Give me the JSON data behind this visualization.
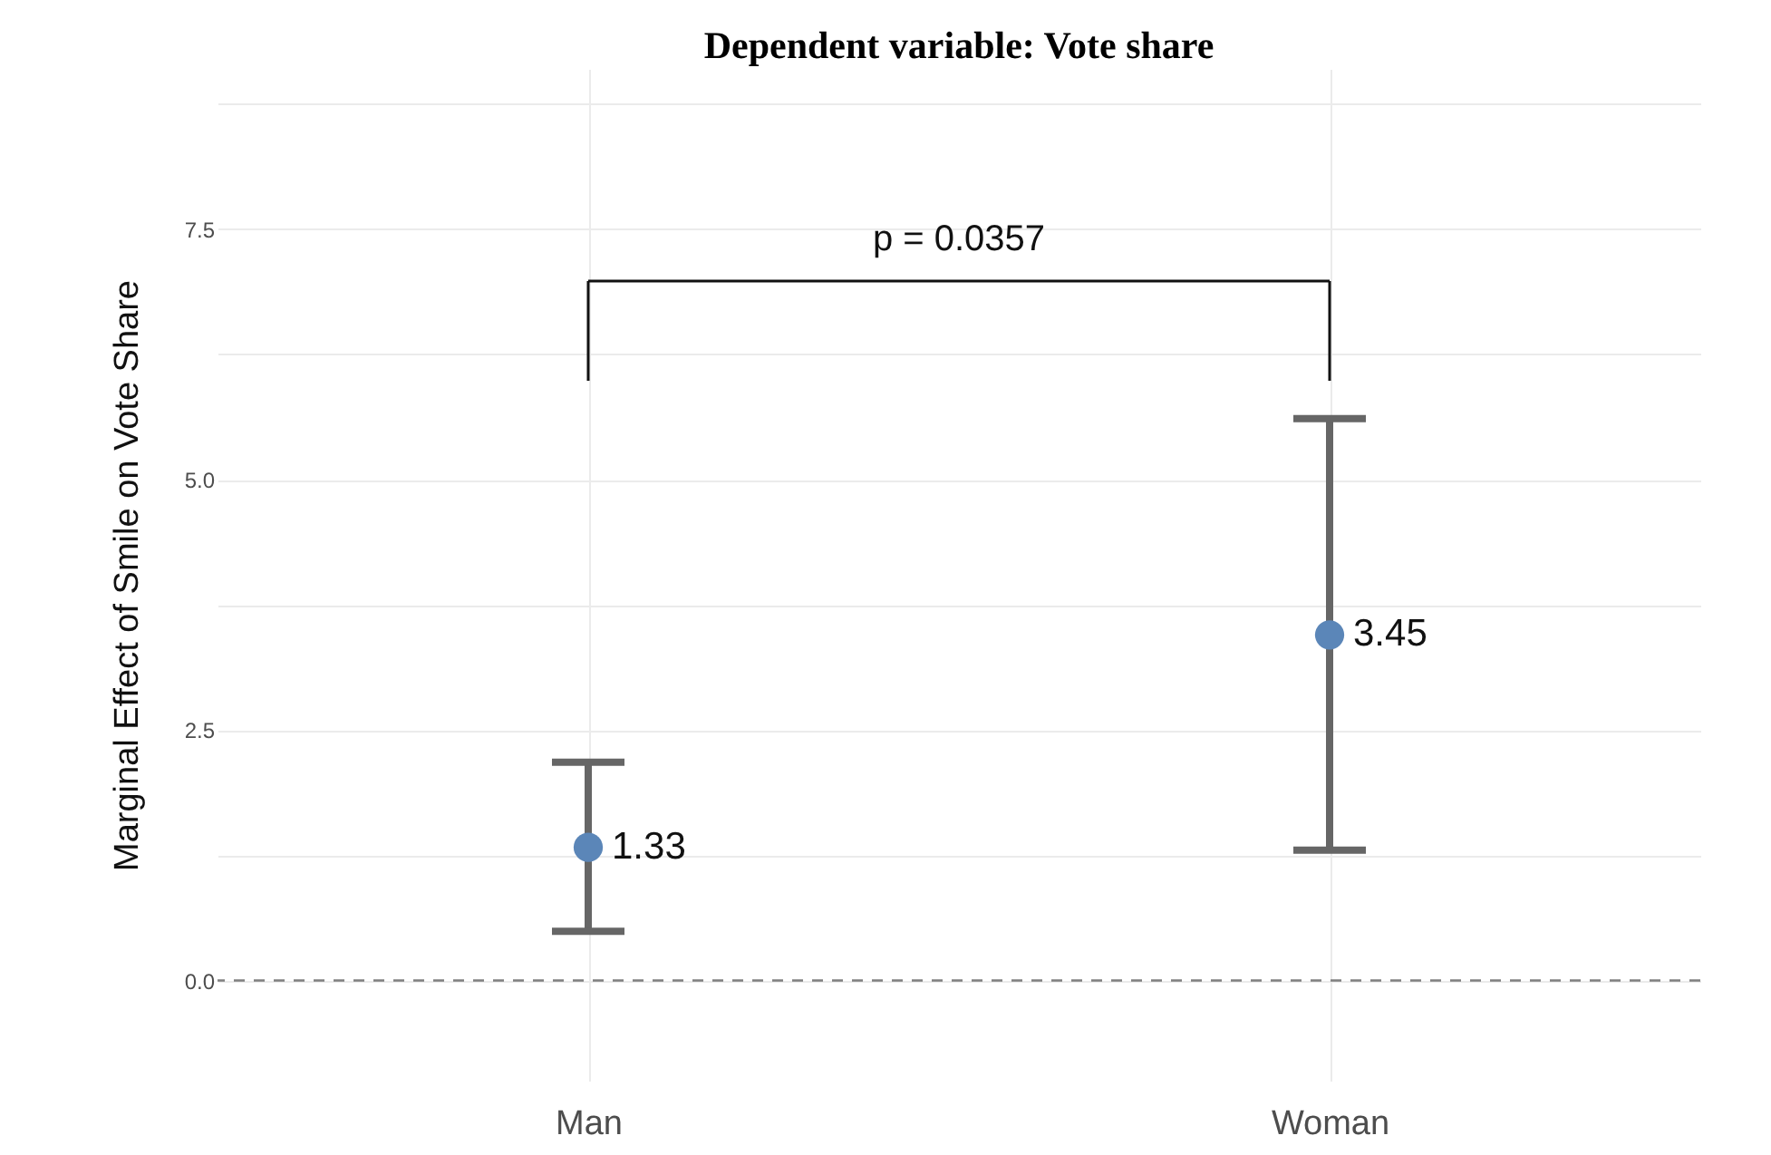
{
  "chart_data": {
    "type": "scatter",
    "title": "Dependent variable: Vote share",
    "ylabel": "Marginal Effect of Smile on Vote Share",
    "categories": [
      "Man",
      "Woman"
    ],
    "series": [
      {
        "color": "#5b86b8",
        "values": [
          1.33,
          3.45
        ],
        "errors": [
          [
            0.49,
            2.18
          ],
          [
            1.3,
            5.61
          ]
        ]
      }
    ],
    "data_labels": true,
    "marker": "circle",
    "grid": true,
    "ylim": [
      -1,
      9.1
    ],
    "yticks": [
      {
        "value": 0,
        "label": "0.0"
      },
      2.5,
      {
        "value": 5,
        "label": "5.0"
      },
      7.5,
      {
        "value": 1.25,
        "label": null
      },
      {
        "value": 3.75,
        "label": null
      },
      {
        "value": 6.25,
        "label": null
      },
      {
        "value": 8.75,
        "label": null
      }
    ],
    "ref_lines": [
      {
        "axis": "y",
        "value": 0,
        "color": "#7f7f7f",
        "line_style": "dashed"
      }
    ],
    "annotations": [
      "p = 0.0357"
    ]
  }
}
